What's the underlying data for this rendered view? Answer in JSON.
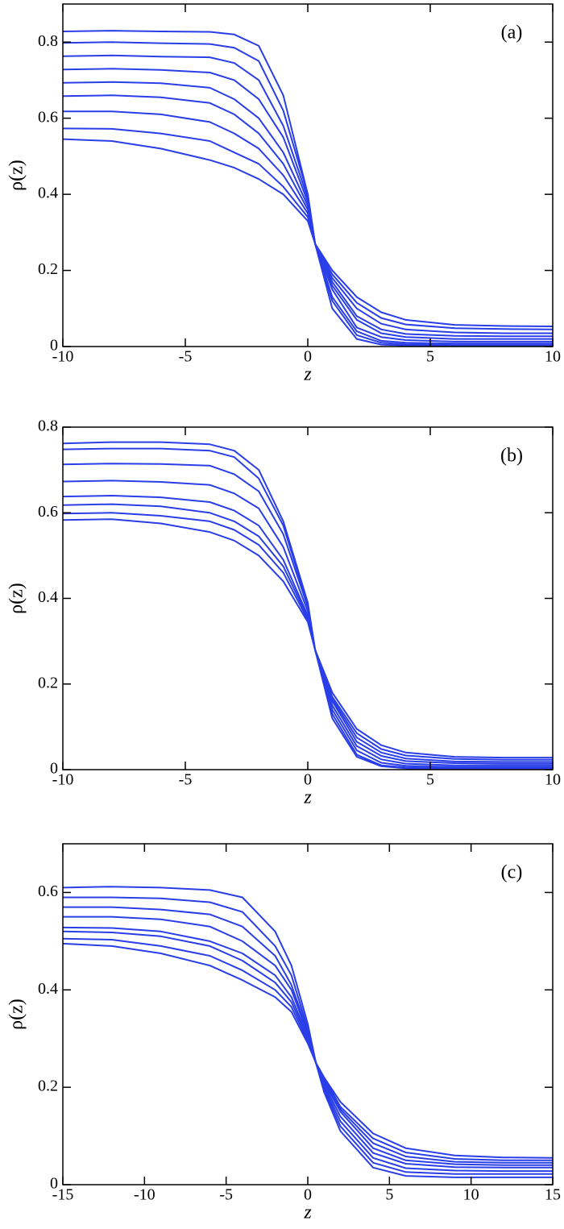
{
  "chart_data": [
    {
      "type": "line",
      "panel_label": "(a)",
      "xlabel": "z",
      "ylabel": "ρ(z)",
      "x": [
        -10,
        -8,
        -6,
        -4,
        -3,
        -2,
        -1,
        0,
        0.3,
        1,
        2,
        3,
        4,
        6,
        8,
        10
      ],
      "xlim": [
        -10,
        10
      ],
      "ylim": [
        0,
        0.9
      ],
      "xticks": [
        -10,
        -5,
        0,
        5,
        10
      ],
      "yticks": [
        0,
        0.2,
        0.4,
        0.6,
        0.8
      ],
      "series": [
        {
          "color": "#2a3ee8",
          "values": [
            0.828,
            0.83,
            0.828,
            0.827,
            0.82,
            0.79,
            0.66,
            0.4,
            0.27,
            0.1,
            0.02,
            0.005,
            0.003,
            0.002,
            0.002,
            0.002
          ]
        },
        {
          "color": "#2a3ee8",
          "values": [
            0.798,
            0.8,
            0.797,
            0.795,
            0.785,
            0.75,
            0.62,
            0.4,
            0.27,
            0.12,
            0.03,
            0.01,
            0.006,
            0.004,
            0.004,
            0.004
          ]
        },
        {
          "color": "#2a3ee8",
          "values": [
            0.763,
            0.765,
            0.762,
            0.76,
            0.745,
            0.7,
            0.58,
            0.39,
            0.27,
            0.13,
            0.04,
            0.015,
            0.01,
            0.008,
            0.008,
            0.008
          ]
        },
        {
          "color": "#2a3ee8",
          "values": [
            0.728,
            0.73,
            0.727,
            0.72,
            0.7,
            0.65,
            0.55,
            0.38,
            0.27,
            0.15,
            0.05,
            0.025,
            0.017,
            0.013,
            0.013,
            0.013
          ]
        },
        {
          "color": "#2a3ee8",
          "values": [
            0.693,
            0.695,
            0.692,
            0.68,
            0.65,
            0.6,
            0.51,
            0.37,
            0.27,
            0.16,
            0.07,
            0.035,
            0.025,
            0.02,
            0.02,
            0.02
          ]
        },
        {
          "color": "#2a3ee8",
          "values": [
            0.658,
            0.66,
            0.655,
            0.64,
            0.61,
            0.56,
            0.48,
            0.36,
            0.27,
            0.17,
            0.08,
            0.045,
            0.033,
            0.028,
            0.027,
            0.027
          ]
        },
        {
          "color": "#2a3ee8",
          "values": [
            0.618,
            0.618,
            0.61,
            0.59,
            0.56,
            0.52,
            0.45,
            0.35,
            0.27,
            0.18,
            0.1,
            0.06,
            0.045,
            0.037,
            0.035,
            0.035
          ]
        },
        {
          "color": "#2a3ee8",
          "values": [
            0.573,
            0.572,
            0.56,
            0.54,
            0.51,
            0.48,
            0.42,
            0.34,
            0.27,
            0.19,
            0.115,
            0.075,
            0.058,
            0.048,
            0.046,
            0.045
          ]
        },
        {
          "color": "#2a3ee8",
          "values": [
            0.545,
            0.54,
            0.52,
            0.49,
            0.47,
            0.44,
            0.4,
            0.33,
            0.27,
            0.2,
            0.13,
            0.09,
            0.07,
            0.057,
            0.054,
            0.053
          ]
        }
      ]
    },
    {
      "type": "line",
      "panel_label": "(b)",
      "xlabel": "z",
      "ylabel": "ρ(z)",
      "x": [
        -10,
        -8,
        -6,
        -4,
        -3,
        -2,
        -1,
        0,
        0.3,
        1,
        2,
        3,
        4,
        6,
        8,
        10
      ],
      "xlim": [
        -10,
        10
      ],
      "ylim": [
        0,
        0.8
      ],
      "xticks": [
        -10,
        -5,
        0,
        5,
        10
      ],
      "yticks": [
        0,
        0.2,
        0.4,
        0.6,
        0.8
      ],
      "series": [
        {
          "color": "#2a3ee8",
          "values": [
            0.762,
            0.765,
            0.765,
            0.76,
            0.745,
            0.7,
            0.58,
            0.39,
            0.28,
            0.12,
            0.03,
            0.008,
            0.003,
            0.001,
            0.001,
            0.001
          ]
        },
        {
          "color": "#2a3ee8",
          "values": [
            0.748,
            0.75,
            0.75,
            0.745,
            0.73,
            0.68,
            0.57,
            0.385,
            0.28,
            0.13,
            0.035,
            0.01,
            0.005,
            0.003,
            0.003,
            0.003
          ]
        },
        {
          "color": "#2a3ee8",
          "values": [
            0.713,
            0.715,
            0.714,
            0.71,
            0.69,
            0.65,
            0.55,
            0.38,
            0.28,
            0.14,
            0.045,
            0.016,
            0.009,
            0.006,
            0.006,
            0.006
          ]
        },
        {
          "color": "#2a3ee8",
          "values": [
            0.673,
            0.675,
            0.672,
            0.665,
            0.645,
            0.61,
            0.52,
            0.37,
            0.28,
            0.15,
            0.055,
            0.024,
            0.014,
            0.01,
            0.01,
            0.01
          ]
        },
        {
          "color": "#2a3ee8",
          "values": [
            0.638,
            0.64,
            0.636,
            0.625,
            0.605,
            0.57,
            0.49,
            0.36,
            0.28,
            0.16,
            0.065,
            0.032,
            0.02,
            0.015,
            0.014,
            0.014
          ]
        },
        {
          "color": "#2a3ee8",
          "values": [
            0.618,
            0.62,
            0.615,
            0.6,
            0.58,
            0.545,
            0.475,
            0.355,
            0.28,
            0.165,
            0.075,
            0.04,
            0.026,
            0.019,
            0.018,
            0.018
          ]
        },
        {
          "color": "#2a3ee8",
          "values": [
            0.598,
            0.6,
            0.593,
            0.58,
            0.56,
            0.525,
            0.46,
            0.35,
            0.28,
            0.17,
            0.085,
            0.048,
            0.033,
            0.025,
            0.023,
            0.023
          ]
        },
        {
          "color": "#2a3ee8",
          "values": [
            0.583,
            0.585,
            0.575,
            0.555,
            0.535,
            0.5,
            0.44,
            0.345,
            0.28,
            0.18,
            0.095,
            0.057,
            0.04,
            0.03,
            0.028,
            0.028
          ]
        }
      ]
    },
    {
      "type": "line",
      "panel_label": "(c)",
      "xlabel": "z",
      "ylabel": "ρ(z)",
      "x": [
        -15,
        -12,
        -9,
        -6,
        -4,
        -2,
        -1,
        0,
        0.5,
        1,
        2,
        4,
        6,
        9,
        12,
        15
      ],
      "xlim": [
        -15,
        15
      ],
      "ylim": [
        0,
        0.7
      ],
      "xticks": [
        -15,
        -10,
        -5,
        0,
        5,
        10,
        15
      ],
      "yticks": [
        0,
        0.2,
        0.4,
        0.6
      ],
      "series": [
        {
          "color": "#2a3ee8",
          "values": [
            0.61,
            0.612,
            0.61,
            0.605,
            0.59,
            0.52,
            0.45,
            0.33,
            0.25,
            0.19,
            0.11,
            0.035,
            0.018,
            0.015,
            0.015,
            0.015
          ]
        },
        {
          "color": "#2a3ee8",
          "values": [
            0.59,
            0.59,
            0.588,
            0.58,
            0.56,
            0.49,
            0.43,
            0.32,
            0.25,
            0.195,
            0.12,
            0.045,
            0.026,
            0.022,
            0.022,
            0.022
          ]
        },
        {
          "color": "#2a3ee8",
          "values": [
            0.57,
            0.57,
            0.565,
            0.555,
            0.53,
            0.47,
            0.41,
            0.315,
            0.25,
            0.2,
            0.13,
            0.055,
            0.034,
            0.029,
            0.028,
            0.028
          ]
        },
        {
          "color": "#2a3ee8",
          "values": [
            0.55,
            0.55,
            0.545,
            0.53,
            0.5,
            0.45,
            0.4,
            0.31,
            0.25,
            0.205,
            0.14,
            0.065,
            0.043,
            0.036,
            0.035,
            0.035
          ]
        },
        {
          "color": "#2a3ee8",
          "values": [
            0.528,
            0.527,
            0.52,
            0.5,
            0.475,
            0.43,
            0.385,
            0.305,
            0.25,
            0.21,
            0.15,
            0.075,
            0.05,
            0.042,
            0.04,
            0.04
          ]
        },
        {
          "color": "#2a3ee8",
          "values": [
            0.52,
            0.518,
            0.51,
            0.49,
            0.46,
            0.415,
            0.375,
            0.3,
            0.25,
            0.215,
            0.155,
            0.085,
            0.058,
            0.047,
            0.045,
            0.045
          ]
        },
        {
          "color": "#2a3ee8",
          "values": [
            0.505,
            0.503,
            0.49,
            0.47,
            0.44,
            0.4,
            0.365,
            0.295,
            0.25,
            0.22,
            0.16,
            0.095,
            0.066,
            0.053,
            0.05,
            0.05
          ]
        },
        {
          "color": "#2a3ee8",
          "values": [
            0.495,
            0.49,
            0.475,
            0.45,
            0.42,
            0.385,
            0.355,
            0.29,
            0.25,
            0.22,
            0.17,
            0.105,
            0.075,
            0.06,
            0.056,
            0.055
          ]
        }
      ]
    }
  ]
}
